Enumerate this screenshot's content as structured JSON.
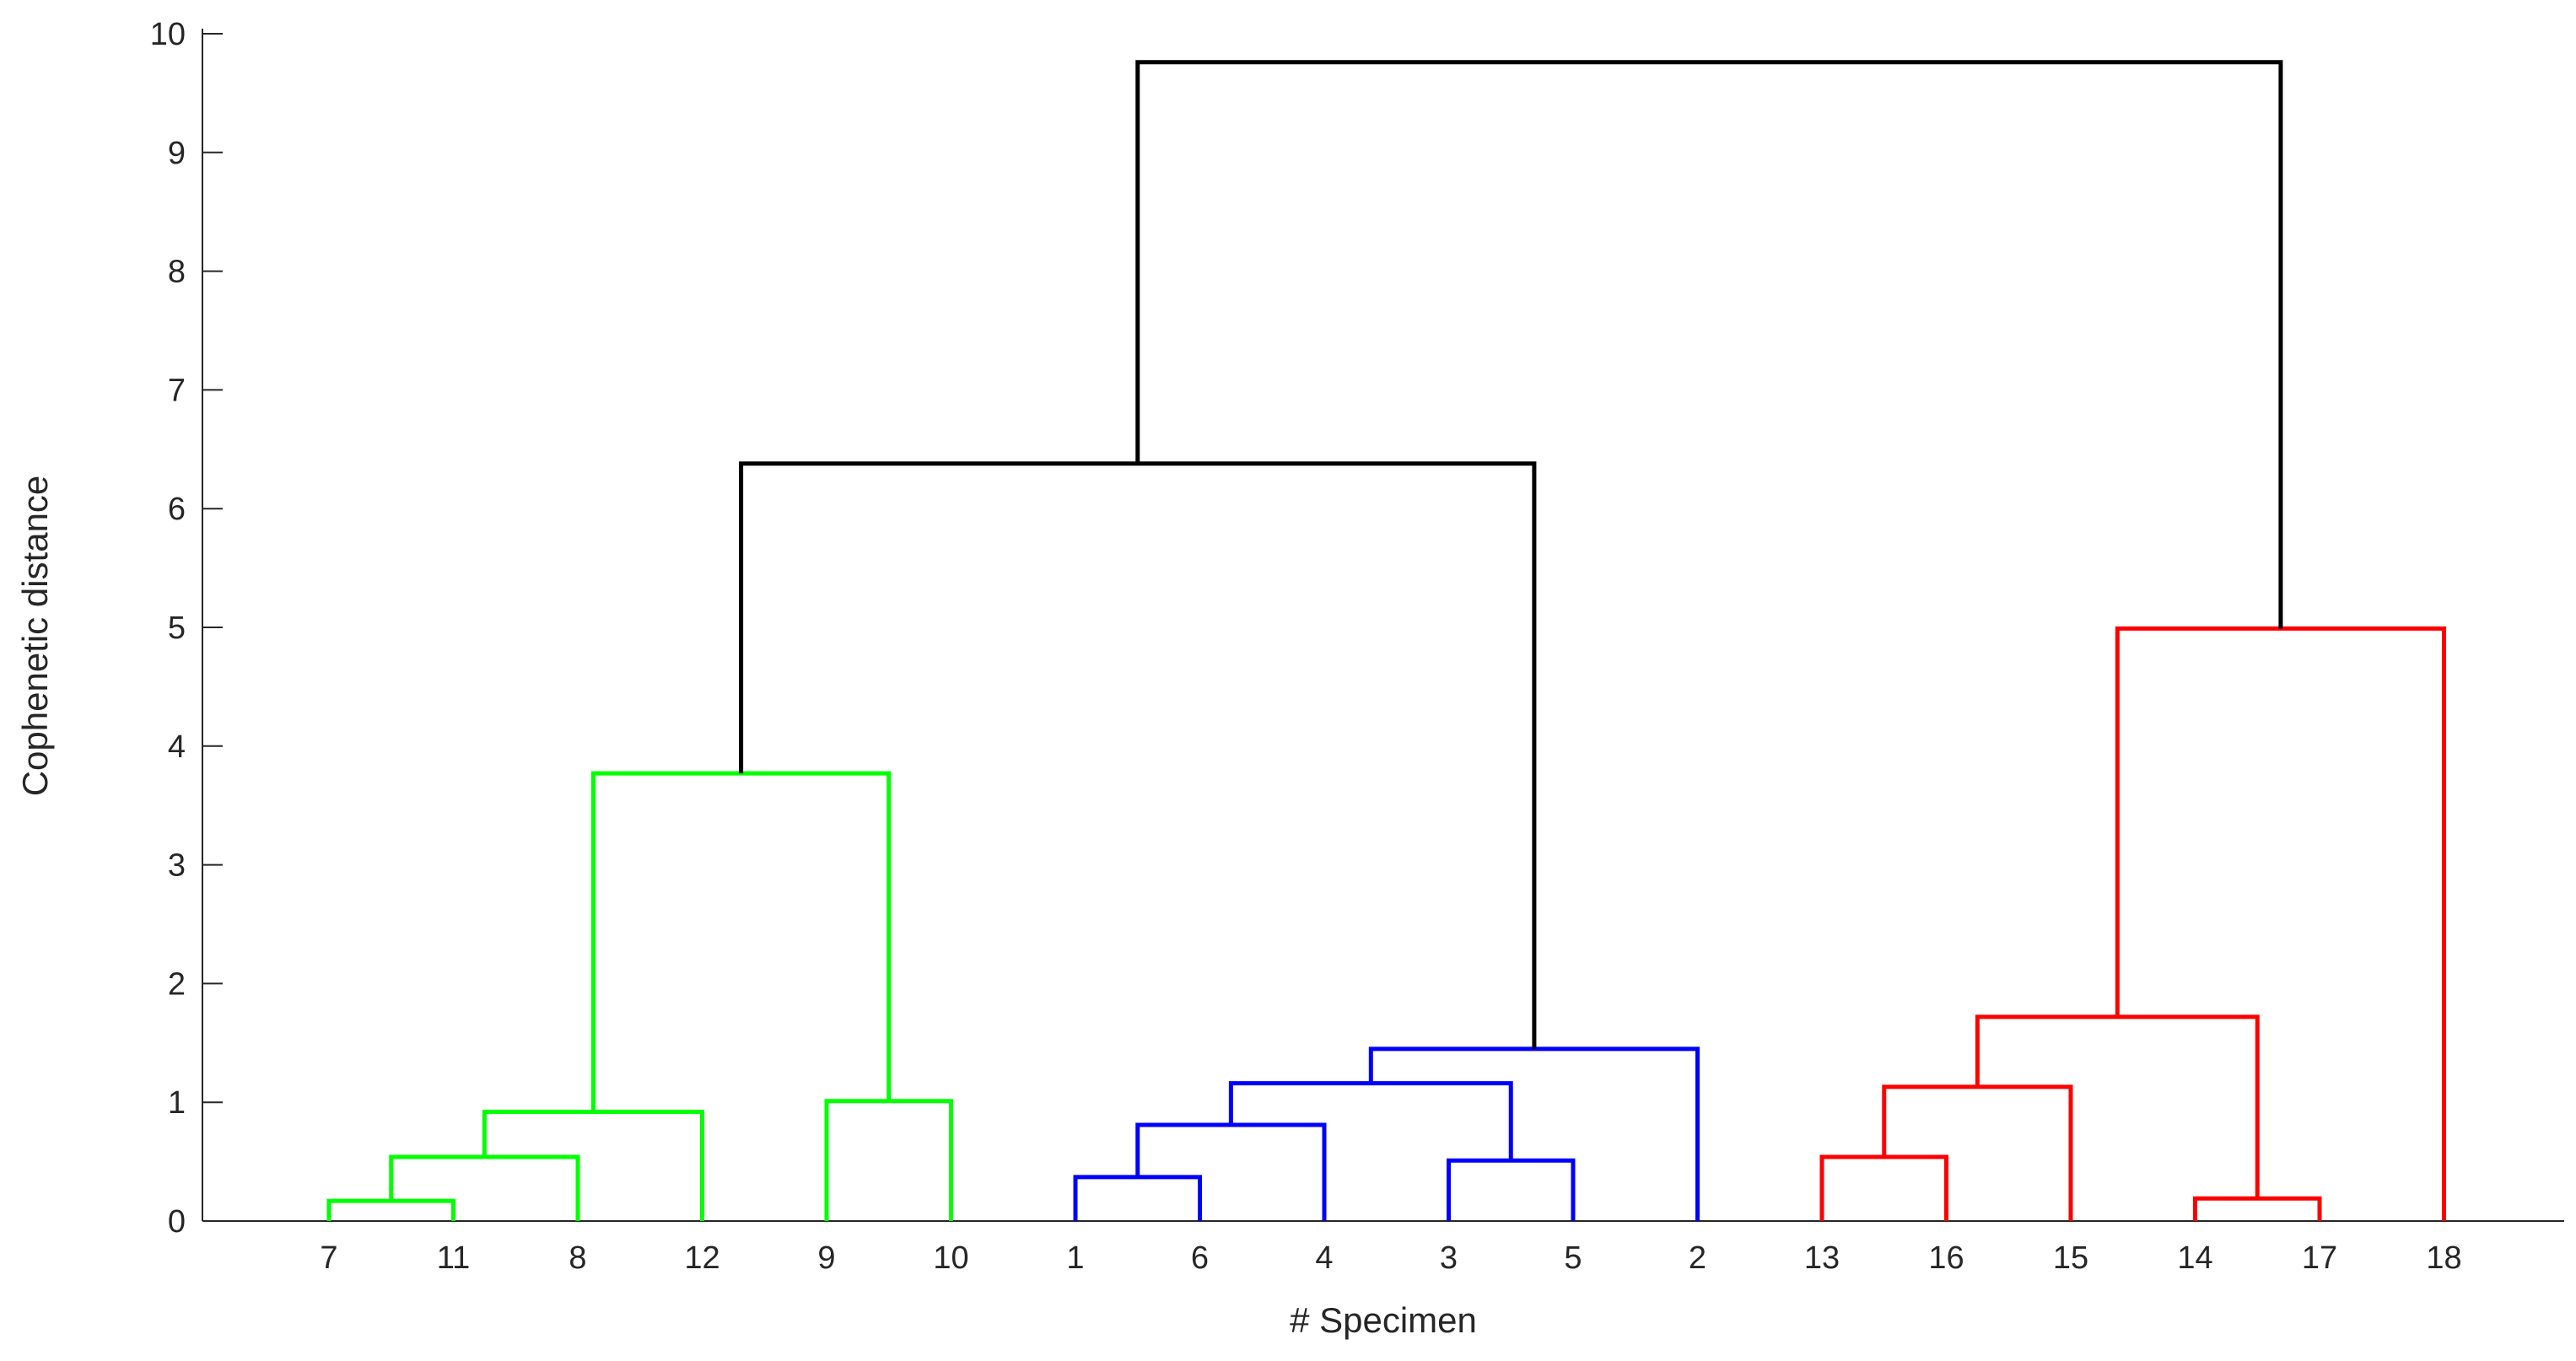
{
  "chart_data": {
    "type": "dendrogram",
    "title": "",
    "xlabel": "# Specimen",
    "ylabel": "Cophenetic distance",
    "ylim": [
      0,
      10
    ],
    "yticks": [
      0,
      1,
      2,
      3,
      4,
      5,
      6,
      7,
      8,
      9,
      10
    ],
    "leaves": [
      "7",
      "11",
      "8",
      "12",
      "9",
      "10",
      "1",
      "6",
      "4",
      "3",
      "5",
      "2",
      "13",
      "16",
      "15",
      "14",
      "17",
      "18"
    ],
    "link_color_above_threshold": "#000000",
    "clusters": [
      {
        "leaves": [
          "7",
          "11",
          "8",
          "12",
          "9",
          "10"
        ],
        "color": "#00ff00"
      },
      {
        "leaves": [
          "1",
          "6",
          "4",
          "3",
          "5",
          "2"
        ],
        "color": "#0000ff"
      },
      {
        "leaves": [
          "13",
          "16",
          "15",
          "14",
          "17",
          "18"
        ],
        "color": "#ff0000"
      }
    ],
    "merges": [
      {
        "left": "7",
        "right": "11",
        "height": 0.17
      },
      {
        "left": "14",
        "right": "17",
        "height": 0.19
      },
      {
        "left": "1",
        "right": "6",
        "height": 0.37
      },
      {
        "left": "3",
        "right": "5",
        "height": 0.51
      },
      {
        "left": "13",
        "right": "16",
        "height": 0.54
      },
      {
        "left": "7+11",
        "right": "8",
        "height": 0.54
      },
      {
        "left": "1+6",
        "right": "4",
        "height": 0.81
      },
      {
        "left": "7+11+8",
        "right": "12",
        "height": 0.92
      },
      {
        "left": "9",
        "right": "10",
        "height": 1.01
      },
      {
        "left": "13+16",
        "right": "15",
        "height": 1.13
      },
      {
        "left": "1+6+4",
        "right": "3+5",
        "height": 1.16
      },
      {
        "left": "1+6+4+3+5",
        "right": "2",
        "height": 1.45
      },
      {
        "left": "13+16+15",
        "right": "14+17",
        "height": 1.72
      },
      {
        "left": "7+11+8+12",
        "right": "9+10",
        "height": 3.77
      },
      {
        "left": "13+16+15+14+17",
        "right": "18",
        "height": 4.99
      },
      {
        "left": "7+11+8+12+9+10",
        "right": "1+6+4+3+5+2",
        "height": 6.38
      },
      {
        "left": "7+11+8+12+9+10+1+6+4+3+5+2",
        "right": "13+16+15+14+17+18",
        "height": 9.76
      }
    ]
  }
}
